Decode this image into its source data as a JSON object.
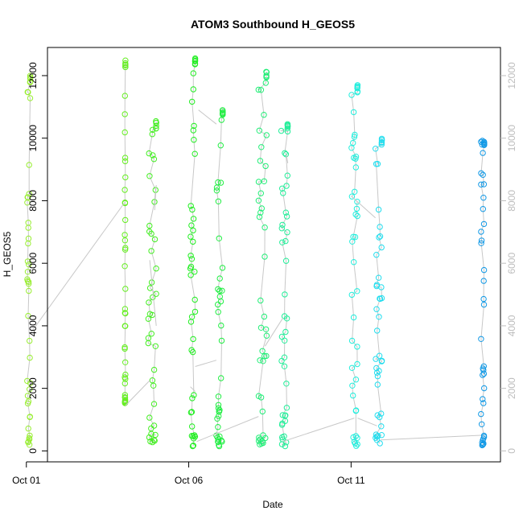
{
  "chart_data": {
    "type": "scatter",
    "title": "ATOM3 Southbound H_GEOS5",
    "xlabel": "Date",
    "ylabel": "H_GEOS5",
    "x_ticks": [
      "Oct 01",
      "Oct 06",
      "Oct 11"
    ],
    "y_ticks": [
      "0",
      "2000",
      "4000",
      "6000",
      "8000",
      "10000",
      "12000"
    ],
    "right_y_ticks": [
      "0",
      "2000",
      "4000",
      "6000",
      "8000",
      "10000",
      "12000"
    ],
    "xlim_days": [
      0.65,
      14.6
    ],
    "ylim": [
      -350,
      12900
    ],
    "grid": false,
    "legend": "none",
    "connector_color": "#c8c8c8",
    "right_axis_color": "#bdbdbd",
    "marker": "open-circle",
    "profiles": [
      {
        "day": 0.02,
        "x_end": 0.12,
        "color": "#99ee33",
        "bottom": 150,
        "top": 12000
      },
      {
        "day": 3.03,
        "x_end": 3.05,
        "color": "#66ee22",
        "bottom": 1450,
        "top": 12500
      },
      {
        "day": 3.75,
        "x_end": 4.0,
        "color": "#44ee22",
        "bottom": 180,
        "top": 10550
      },
      {
        "day": 5.05,
        "x_end": 5.2,
        "color": "#22ee22",
        "bottom": 150,
        "top": 12550
      },
      {
        "day": 5.85,
        "x_end": 6.05,
        "color": "#22ee44",
        "bottom": 150,
        "top": 10950
      },
      {
        "day": 7.15,
        "x_end": 7.4,
        "color": "#22ee77",
        "bottom": 150,
        "top": 12150
      },
      {
        "day": 7.85,
        "x_end": 8.05,
        "color": "#22ee99",
        "bottom": 150,
        "top": 10450
      },
      {
        "day": 10.0,
        "x_end": 10.2,
        "color": "#22eedd",
        "bottom": 150,
        "top": 11700
      },
      {
        "day": 10.75,
        "x_end": 10.95,
        "color": "#22ddee",
        "bottom": 200,
        "top": 10000
      },
      {
        "day": 14.0,
        "x_end": 14.1,
        "color": "#1199e6",
        "bottom": 150,
        "top": 10000
      }
    ],
    "transitions": [
      {
        "from": [
          0.12,
          3750
        ],
        "to": [
          3.03,
          7950
        ]
      },
      {
        "from": [
          3.05,
          1450
        ],
        "to": [
          3.8,
          2250
        ]
      },
      {
        "from": [
          3.95,
          7700
        ],
        "to": [
          4.0,
          8500
        ]
      },
      {
        "from": [
          4.0,
          4000
        ],
        "to": [
          3.8,
          6100
        ]
      },
      {
        "from": [
          5.2,
          2700
        ],
        "to": [
          5.85,
          2900
        ]
      },
      {
        "from": [
          5.05,
          2050
        ],
        "to": [
          5.2,
          1900
        ]
      },
      {
        "from": [
          5.25,
          300
        ],
        "to": [
          7.15,
          1100
        ]
      },
      {
        "from": [
          5.3,
          10900
        ],
        "to": [
          5.85,
          10450
        ]
      },
      {
        "from": [
          6.05,
          10950
        ],
        "to": [
          6.0,
          10900
        ]
      },
      {
        "from": [
          7.35,
          3350
        ],
        "to": [
          7.9,
          4250
        ]
      },
      {
        "from": [
          7.9,
          300
        ],
        "to": [
          10.1,
          1050
        ]
      },
      {
        "from": [
          10.2,
          1050
        ],
        "to": [
          10.8,
          800
        ]
      },
      {
        "from": [
          8.05,
          9200
        ],
        "to": [
          8.0,
          9500
        ]
      },
      {
        "from": [
          10.0,
          8150
        ],
        "to": [
          10.75,
          7450
        ]
      },
      {
        "from": [
          10.9,
          350
        ],
        "to": [
          14.0,
          500
        ]
      }
    ]
  }
}
